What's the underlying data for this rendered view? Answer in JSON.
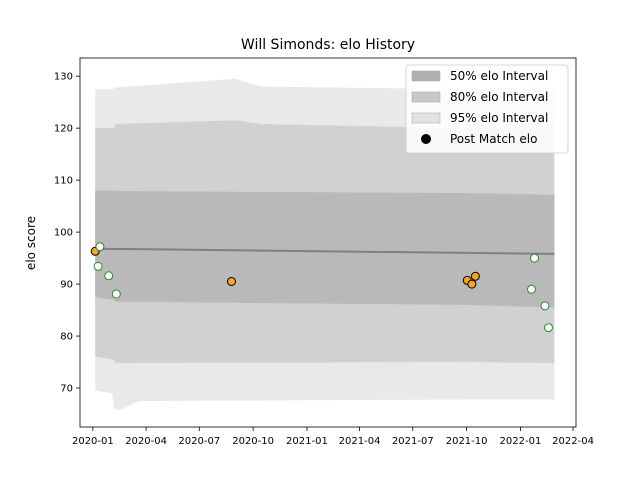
{
  "chart_data": {
    "type": "scatter",
    "title": "Will Simonds: elo History",
    "xlabel": "",
    "ylabel": "elo score",
    "ylim": [
      62.5,
      133.5
    ],
    "xlim": [
      "2019-12-10",
      "2022-04-06"
    ],
    "yticks": [
      70,
      80,
      90,
      100,
      110,
      120,
      130
    ],
    "xticks": [
      "2020-01",
      "2020-04",
      "2020-07",
      "2020-10",
      "2021-01",
      "2021-04",
      "2021-07",
      "2021-10",
      "2022-01",
      "2022-04"
    ],
    "grid": false,
    "legend": {
      "placement": "top-right",
      "entries": [
        {
          "label": "50% elo Interval",
          "color": "#b0b0b0"
        },
        {
          "label": "80% elo Interval",
          "color": "#c8c8c8"
        },
        {
          "label": "95% elo Interval",
          "color": "#e2e2e2"
        },
        {
          "label": "Post Match elo",
          "color": "#000000"
        }
      ]
    },
    "mean_line": {
      "color": "#808080",
      "points": [
        [
          "2020-01-05",
          96.8
        ],
        [
          "2022-02-28",
          95.8
        ]
      ]
    },
    "intervals": [
      {
        "name": "95% elo Interval",
        "color": "#e2e2e2",
        "upper": [
          [
            "2020-01-05",
            127.5
          ],
          [
            "2020-02-05",
            127.5
          ],
          [
            "2020-02-06",
            127.8
          ],
          [
            "2020-09-01",
            129.5
          ],
          [
            "2020-10-15",
            128.0
          ],
          [
            "2021-10-01",
            127.5
          ],
          [
            "2022-02-28",
            128.0
          ]
        ],
        "lower": [
          [
            "2020-01-05",
            69.5
          ],
          [
            "2020-02-03",
            69.0
          ],
          [
            "2020-02-06",
            66.0
          ],
          [
            "2020-02-15",
            65.7
          ],
          [
            "2020-03-20",
            67.5
          ],
          [
            "2021-10-01",
            67.8
          ],
          [
            "2022-02-28",
            67.8
          ]
        ]
      },
      {
        "name": "80% elo Interval",
        "color": "#c8c8c8",
        "upper": [
          [
            "2020-01-05",
            120.0
          ],
          [
            "2020-02-05",
            120.0
          ],
          [
            "2020-02-10",
            120.8
          ],
          [
            "2020-09-01",
            121.5
          ],
          [
            "2020-10-15",
            120.8
          ],
          [
            "2021-10-01",
            120.0
          ],
          [
            "2022-02-28",
            120.5
          ]
        ],
        "lower": [
          [
            "2020-01-05",
            76.0
          ],
          [
            "2020-02-05",
            75.5
          ],
          [
            "2020-02-10",
            74.8
          ],
          [
            "2021-10-01",
            75.0
          ],
          [
            "2022-02-28",
            74.8
          ]
        ]
      },
      {
        "name": "50% elo Interval",
        "color": "#b0b0b0",
        "upper": [
          [
            "2020-01-05",
            108.0
          ],
          [
            "2020-02-05",
            108.0
          ],
          [
            "2020-02-10",
            107.9
          ],
          [
            "2021-10-01",
            107.5
          ],
          [
            "2022-02-28",
            107.2
          ]
        ],
        "lower": [
          [
            "2020-01-05",
            87.5
          ],
          [
            "2020-02-05",
            87.0
          ],
          [
            "2020-02-10",
            86.6
          ],
          [
            "2021-10-01",
            86.0
          ],
          [
            "2022-02-28",
            85.5
          ]
        ]
      }
    ],
    "series": [
      {
        "name": "Post Match elo",
        "marker": "filled",
        "color": "#f5a623",
        "edge": "#000000",
        "points": [
          [
            "2020-01-05",
            96.3
          ],
          [
            "2020-08-25",
            90.5
          ],
          [
            "2021-10-02",
            90.7
          ],
          [
            "2021-10-10",
            90.0
          ],
          [
            "2021-10-16",
            91.5
          ]
        ]
      },
      {
        "name": "Post Match elo",
        "marker": "open",
        "color": "#ffffff",
        "edge": "#2a8a2a",
        "points": [
          [
            "2020-01-13",
            97.2
          ],
          [
            "2020-01-10",
            93.4
          ],
          [
            "2020-01-28",
            91.6
          ],
          [
            "2020-02-10",
            88.1
          ],
          [
            "2022-01-20",
            89.0
          ],
          [
            "2022-01-25",
            95.0
          ],
          [
            "2022-02-12",
            85.8
          ],
          [
            "2022-02-18",
            81.6
          ]
        ]
      }
    ]
  }
}
